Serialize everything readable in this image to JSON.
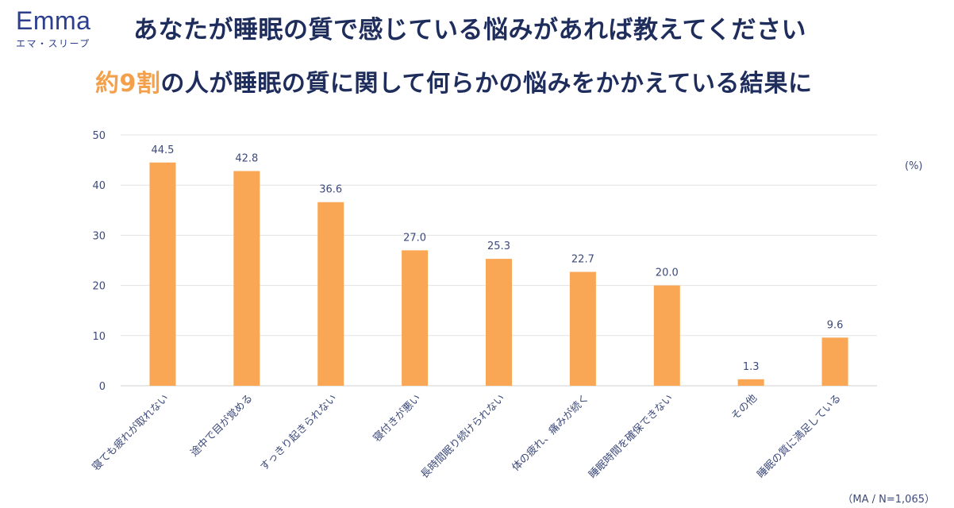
{
  "logo": {
    "word": "Emma",
    "sub": "エマ・スリープ"
  },
  "headline": "あなたが睡眠の質で感じている悩みがあれば教えてください",
  "subline": {
    "accent": "約9割",
    "rest": "の人が睡眠の質に関して何らかの悩みをかかえている結果に"
  },
  "unit": "(%)",
  "footnote": "（MA / N=1,065）",
  "colors": {
    "bar": "#f9a655",
    "grid": "#e3e3e3",
    "axis": "#d0d0d0",
    "text": "#3d4a7a",
    "navy": "#1e2d5c",
    "accent": "#f4a04a"
  },
  "chart_data": {
    "type": "bar",
    "title": "あなたが睡眠の質で感じている悩みがあれば教えてください",
    "ylabel": "(%)",
    "ylim": [
      0,
      50
    ],
    "yticks": [
      0,
      10,
      20,
      30,
      40,
      50
    ],
    "grid": true,
    "categories": [
      "寝ても疲れが取れない",
      "途中で目が覚める",
      "すっきり起きられない",
      "寝付きが悪い",
      "長時間眠り続けられない",
      "体の疲れ、痛みが続く",
      "睡眠時間を確保できない",
      "その他",
      "睡眠の質に満足している"
    ],
    "values": [
      44.5,
      42.8,
      36.6,
      27.0,
      25.3,
      22.7,
      20.0,
      1.3,
      9.6
    ],
    "value_labels": [
      "44.5",
      "42.8",
      "36.6",
      "27.0",
      "25.3",
      "22.7",
      "20.0",
      "1.3",
      "9.6"
    ]
  }
}
